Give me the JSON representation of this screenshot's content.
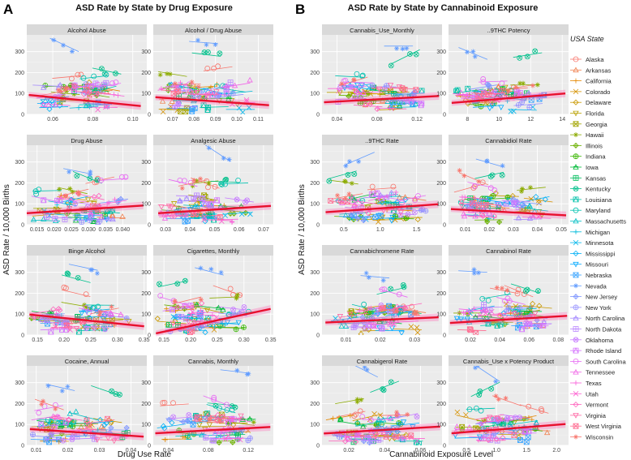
{
  "figure": {
    "panel_a": {
      "letter": "A",
      "title": "ASD Rate by State by Drug Exposure",
      "xlabel": "Drug Use Rate",
      "ylabel": "ASD Rate / 10,000 Births"
    },
    "panel_b": {
      "letter": "B",
      "title": "ASD Rate by State by Cannabinoid Exposure",
      "xlabel": "Cannabinoid Exposure Level",
      "ylabel": "ASD Rate / 10,000 Births"
    }
  },
  "legend": {
    "title": "USA State",
    "states": [
      "Alaska",
      "Arkansas",
      "California",
      "Colorado",
      "Delaware",
      "Florida",
      "Georgia",
      "Hawaii",
      "Illinois",
      "Indiana",
      "Iowa",
      "Kansas",
      "Kentucky",
      "Louisiana",
      "Maryland",
      "Massachusetts",
      "Michigan",
      "Minnesota",
      "Mississippi",
      "Missouri",
      "Nebraska",
      "Nevada",
      "New Jersey",
      "New York",
      "North Carolina",
      "North Dakota",
      "Oklahoma",
      "Rhode Island",
      "South Carolina",
      "Tennessee",
      "Texas",
      "Utah",
      "Vermont",
      "Virginia",
      "West Virginia",
      "Wisconsin"
    ],
    "colors": [
      "#F8766D",
      "#F07E4B",
      "#E58700",
      "#D59100",
      "#C99800",
      "#B9A100",
      "#A3A500",
      "#8CAB00",
      "#6BB100",
      "#39B600",
      "#00BA38",
      "#00BD5C",
      "#00C08B",
      "#00C1A9",
      "#00C0AF",
      "#00BFC4",
      "#00BBDA",
      "#00B6EB",
      "#00B0F6",
      "#00A9FF",
      "#35A2FF",
      "#619CFF",
      "#7F96FF",
      "#9590FF",
      "#A58AFF",
      "#B983FF",
      "#C77CFF",
      "#D575FE",
      "#E76BF3",
      "#F063E6",
      "#FA62DB",
      "#FD61D1",
      "#FF62BC",
      "#FF67A4",
      "#FF6C91",
      "#F8766D"
    ],
    "markers": [
      "circle",
      "triangle",
      "plus",
      "x",
      "diamond",
      "down",
      "square-x",
      "star",
      "diamond-plus",
      "circle-plus",
      "cross-tri",
      "square-plus",
      "circle-x",
      "square-tri",
      "circle",
      "triangle",
      "plus",
      "x",
      "diamond",
      "down",
      "square-x",
      "star",
      "diamond-plus",
      "circle-plus",
      "cross-tri",
      "square-plus",
      "circle-x",
      "square-tri",
      "circle",
      "triangle",
      "plus",
      "x",
      "diamond",
      "down",
      "square-x",
      "star"
    ]
  },
  "chart_data": [
    {
      "type": "scatter",
      "panel": "A",
      "title": "Alcohol Abuse",
      "ylim": [
        0,
        380
      ],
      "x_ticks": [
        0.06,
        0.08,
        0.1
      ],
      "x_tick_labels": [
        "0.06",
        "0.08",
        "0.10"
      ],
      "xlim": [
        0.047,
        0.107
      ],
      "y_ticks": [
        0,
        100,
        200,
        300
      ],
      "trend": {
        "x": [
          0.048,
          0.104
        ],
        "y": [
          93,
          40
        ]
      }
    },
    {
      "type": "scatter",
      "panel": "A",
      "title": "Alcohol / Drug Abuse",
      "ylim": [
        0,
        380
      ],
      "x_ticks": [
        0.07,
        0.08,
        0.09,
        0.1,
        0.11
      ],
      "x_tick_labels": [
        "0.07",
        "0.08",
        "0.09",
        "0.10",
        "0.11"
      ],
      "xlim": [
        0.061,
        0.117
      ],
      "y_ticks": [
        0,
        100,
        200,
        300
      ],
      "trend": {
        "x": [
          0.062,
          0.115
        ],
        "y": [
          82,
          44
        ]
      }
    },
    {
      "type": "scatter",
      "panel": "A",
      "title": "Drug Abuse",
      "ylim": [
        0,
        380
      ],
      "x_ticks": [
        0.015,
        0.02,
        0.025,
        0.03,
        0.035,
        0.04
      ],
      "x_tick_labels": [
        "0.015",
        "0.020",
        "0.025",
        "0.030",
        "0.035",
        "0.040"
      ],
      "xlim": [
        0.012,
        0.047
      ],
      "y_ticks": [
        0,
        100,
        200,
        300
      ],
      "trend": {
        "x": [
          0.012,
          0.046
        ],
        "y": [
          55,
          92
        ]
      }
    },
    {
      "type": "scatter",
      "panel": "A",
      "title": "Analgesic Abuse",
      "ylim": [
        0,
        380
      ],
      "x_ticks": [
        0.03,
        0.04,
        0.05,
        0.06,
        0.07
      ],
      "x_tick_labels": [
        "0.03",
        "0.04",
        "0.05",
        "0.06",
        "0.07"
      ],
      "xlim": [
        0.025,
        0.074
      ],
      "y_ticks": [
        0,
        100,
        200,
        300
      ],
      "trend": {
        "x": [
          0.027,
          0.073
        ],
        "y": [
          55,
          90
        ]
      }
    },
    {
      "type": "scatter",
      "panel": "A",
      "title": "Binge Alcohol",
      "ylim": [
        0,
        380
      ],
      "x_ticks": [
        0.15,
        0.2,
        0.25,
        0.3,
        0.35
      ],
      "x_tick_labels": [
        "0.15",
        "0.20",
        "0.25",
        "0.30",
        "0.35"
      ],
      "xlim": [
        0.13,
        0.355
      ],
      "y_ticks": [
        0,
        100,
        200,
        300
      ],
      "trend": {
        "x": [
          0.135,
          0.35
        ],
        "y": [
          98,
          42
        ]
      }
    },
    {
      "type": "scatter",
      "panel": "A",
      "title": "Cigarettes, Monthly",
      "ylim": [
        0,
        380
      ],
      "x_ticks": [
        0.15,
        0.2,
        0.25,
        0.3,
        0.35
      ],
      "x_tick_labels": [
        "0.15",
        "0.20",
        "0.25",
        "0.30",
        "0.35"
      ],
      "xlim": [
        0.13,
        0.355
      ],
      "y_ticks": [
        0,
        100,
        200,
        300
      ],
      "trend": {
        "x": [
          0.135,
          0.35
        ],
        "y": [
          8,
          125
        ]
      }
    },
    {
      "type": "scatter",
      "panel": "A",
      "title": "Cocaine, Annual",
      "ylim": [
        0,
        380
      ],
      "x_ticks": [
        0.01,
        0.02,
        0.03,
        0.04
      ],
      "x_tick_labels": [
        "0.01",
        "0.02",
        "0.03",
        "0.04"
      ],
      "xlim": [
        0.007,
        0.045
      ],
      "y_ticks": [
        0,
        100,
        200,
        300
      ],
      "trend": {
        "x": [
          0.008,
          0.044
        ],
        "y": [
          78,
          42
        ]
      }
    },
    {
      "type": "scatter",
      "panel": "A",
      "title": "Cannabis, Monthly",
      "ylim": [
        0,
        380
      ],
      "x_ticks": [
        0.04,
        0.08,
        0.12
      ],
      "x_tick_labels": [
        "0.04",
        "0.08",
        "0.12"
      ],
      "xlim": [
        0.025,
        0.145
      ],
      "y_ticks": [
        0,
        100,
        200,
        300
      ],
      "trend": {
        "x": [
          0.027,
          0.142
        ],
        "y": [
          58,
          88
        ]
      }
    },
    {
      "type": "scatter",
      "panel": "B",
      "title": "Cannabis_Use_Monthly",
      "ylim": [
        0,
        380
      ],
      "x_ticks": [
        0.04,
        0.08,
        0.12
      ],
      "x_tick_labels": [
        "0.04",
        "0.08",
        "0.12"
      ],
      "xlim": [
        0.025,
        0.145
      ],
      "y_ticks": [
        0,
        100,
        200,
        300
      ],
      "trend": {
        "x": [
          0.027,
          0.142
        ],
        "y": [
          58,
          88
        ]
      }
    },
    {
      "type": "scatter",
      "panel": "B",
      "title": "..9THC Potency",
      "ylim": [
        0,
        380
      ],
      "x_ticks": [
        8,
        10,
        12,
        14
      ],
      "x_tick_labels": [
        "8",
        "10",
        "12",
        "14"
      ],
      "xlim": [
        6.8,
        14.4
      ],
      "y_ticks": [
        0,
        100,
        200,
        300
      ],
      "trend": {
        "x": [
          7,
          14.2
        ],
        "y": [
          55,
          100
        ]
      }
    },
    {
      "type": "scatter",
      "panel": "B",
      "title": "..9THC Rate",
      "ylim": [
        0,
        380
      ],
      "x_ticks": [
        0.5,
        1.0,
        1.5
      ],
      "x_tick_labels": [
        "0.5",
        "1.0",
        "1.5"
      ],
      "xlim": [
        0.2,
        1.85
      ],
      "y_ticks": [
        0,
        100,
        200,
        300
      ],
      "trend": {
        "x": [
          0.25,
          1.8
        ],
        "y": [
          60,
          98
        ]
      }
    },
    {
      "type": "scatter",
      "panel": "B",
      "title": "Cannabidiol Rate",
      "ylim": [
        0,
        380
      ],
      "x_ticks": [
        0.01,
        0.02,
        0.03,
        0.04,
        0.05
      ],
      "x_tick_labels": [
        "0.01",
        "0.02",
        "0.03",
        "0.04",
        "0.05"
      ],
      "xlim": [
        0.003,
        0.053
      ],
      "y_ticks": [
        0,
        100,
        200,
        300
      ],
      "trend": {
        "x": [
          0.004,
          0.052
        ],
        "y": [
          75,
          45
        ]
      }
    },
    {
      "type": "scatter",
      "panel": "B",
      "title": "Cannabichromene Rate",
      "ylim": [
        0,
        380
      ],
      "x_ticks": [
        0.01,
        0.02,
        0.03
      ],
      "x_tick_labels": [
        "0.01",
        "0.02",
        "0.03"
      ],
      "xlim": [
        0.003,
        0.038
      ],
      "y_ticks": [
        0,
        100,
        200,
        300
      ],
      "trend": {
        "x": [
          0.004,
          0.037
        ],
        "y": [
          60,
          85
        ]
      }
    },
    {
      "type": "scatter",
      "panel": "B",
      "title": "Cannabinol Rate",
      "ylim": [
        0,
        380
      ],
      "x_ticks": [
        0.02,
        0.04,
        0.06,
        0.08
      ],
      "x_tick_labels": [
        "0.02",
        "0.04",
        "0.06",
        "0.08"
      ],
      "xlim": [
        0.005,
        0.087
      ],
      "y_ticks": [
        0,
        100,
        200,
        300
      ],
      "trend": {
        "x": [
          0.006,
          0.086
        ],
        "y": [
          58,
          92
        ]
      }
    },
    {
      "type": "scatter",
      "panel": "B",
      "title": "Cannabigerol Rate",
      "ylim": [
        0,
        380
      ],
      "x_ticks": [
        0.02,
        0.04,
        0.06
      ],
      "x_tick_labels": [
        "0.02",
        "0.04",
        "0.06"
      ],
      "xlim": [
        0.005,
        0.072
      ],
      "y_ticks": [
        0,
        100,
        200,
        300
      ],
      "trend": {
        "x": [
          0.006,
          0.071
        ],
        "y": [
          57,
          90
        ]
      }
    },
    {
      "type": "scatter",
      "panel": "B",
      "title": "Cannabis_Use x Potency Product",
      "ylim": [
        0,
        380
      ],
      "x_ticks": [
        0.5,
        1.0,
        1.5,
        2.0
      ],
      "x_tick_labels": [
        "0.5",
        "1.0",
        "1.5",
        "2.0"
      ],
      "xlim": [
        0.2,
        2.2
      ],
      "y_ticks": [
        0,
        100,
        200,
        300
      ],
      "trend": {
        "x": [
          0.25,
          2.15
        ],
        "y": [
          58,
          102
        ]
      }
    }
  ]
}
